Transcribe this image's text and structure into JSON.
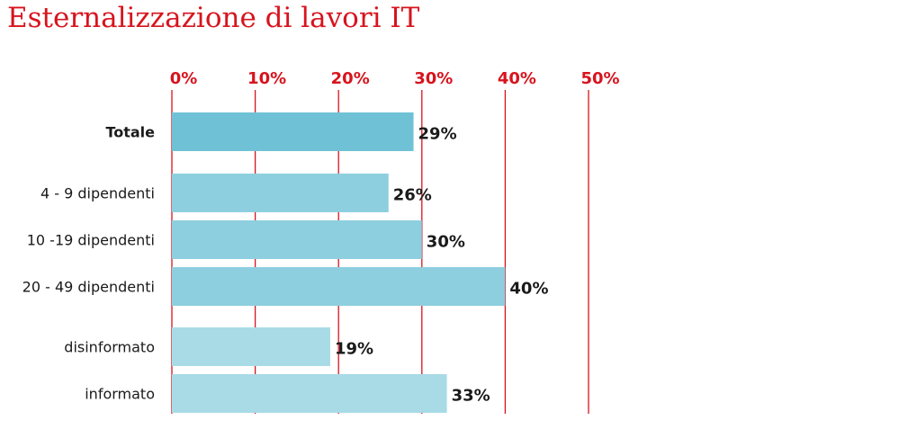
{
  "title": "Esternalizzazione di lavori IT",
  "chart_data": {
    "type": "bar",
    "orientation": "horizontal",
    "xlim": [
      0,
      50
    ],
    "xticks": [
      "0%",
      "10%",
      "20%",
      "30%",
      "40%",
      "50%"
    ],
    "grid": true,
    "categories": [
      "Totale",
      "4 - 9 dipendenti",
      "10 -19 dipendenti",
      "20 - 49 dipendenti",
      "disinformato",
      "informato"
    ],
    "values": [
      29,
      26,
      30,
      40,
      19,
      33
    ],
    "value_labels": [
      "29%",
      "26%",
      "30%",
      "40%",
      "19%",
      "33%"
    ],
    "bold_categories": [
      "Totale"
    ],
    "colors": [
      "#6fc2d5",
      "#8dcfdf",
      "#8dcfdf",
      "#8dcfdf",
      "#a8dbe6",
      "#a8dbe6"
    ],
    "axis_color": "#d7141e"
  }
}
